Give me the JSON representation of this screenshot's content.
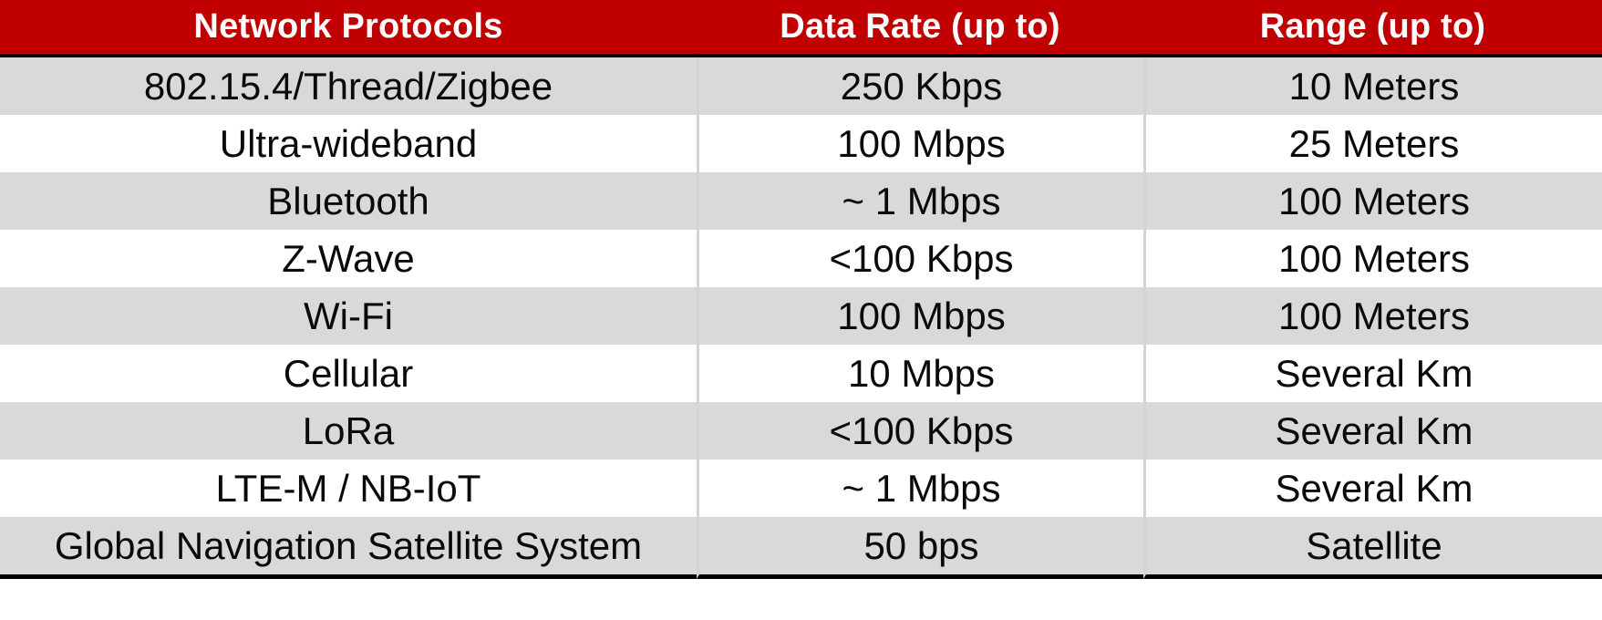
{
  "table": {
    "columns": [
      {
        "label": "Network Protocols"
      },
      {
        "label": "Data Rate (up to)"
      },
      {
        "label": "Range (up to)"
      }
    ],
    "rows": [
      {
        "protocol": "802.15.4/Thread/Zigbee",
        "data_rate": "250 Kbps",
        "range": "10 Meters"
      },
      {
        "protocol": "Ultra-wideband",
        "data_rate": "100 Mbps",
        "range": "25 Meters"
      },
      {
        "protocol": "Bluetooth",
        "data_rate": "~ 1 Mbps",
        "range": "100 Meters"
      },
      {
        "protocol": "Z-Wave",
        "data_rate": "<100 Kbps",
        "range": "100 Meters"
      },
      {
        "protocol": "Wi-Fi",
        "data_rate": "100 Mbps",
        "range": "100 Meters"
      },
      {
        "protocol": "Cellular",
        "data_rate": "10 Mbps",
        "range": "Several Km"
      },
      {
        "protocol": "LoRa",
        "data_rate": "<100 Kbps",
        "range": "Several Km"
      },
      {
        "protocol": "LTE-M / NB-IoT",
        "data_rate": "~ 1 Mbps",
        "range": "Several Km"
      },
      {
        "protocol": "Global Navigation Satellite System",
        "data_rate": "50 bps",
        "range": "Satellite"
      }
    ]
  },
  "colors": {
    "header_bg": "#c00000",
    "header_text": "#ffffff",
    "row_bg": "#ffffff",
    "row_alt_bg": "#d9d9d9",
    "divider": "#d4d4d4",
    "frame_line": "#000000",
    "cell_text": "#0a0a0a"
  },
  "chart_data": {
    "type": "table",
    "title": "",
    "columns": [
      "Network Protocols",
      "Data Rate (up to)",
      "Range (up to)"
    ],
    "rows": [
      [
        "802.15.4/Thread/Zigbee",
        "250 Kbps",
        "10 Meters"
      ],
      [
        "Ultra-wideband",
        "100 Mbps",
        "25 Meters"
      ],
      [
        "Bluetooth",
        "~ 1 Mbps",
        "100 Meters"
      ],
      [
        "Z-Wave",
        "<100 Kbps",
        "100 Meters"
      ],
      [
        "Wi-Fi",
        "100 Mbps",
        "100 Meters"
      ],
      [
        "Cellular",
        "10 Mbps",
        "Several Km"
      ],
      [
        "LoRa",
        "<100 Kbps",
        "Several Km"
      ],
      [
        "LTE-M / NB-IoT",
        "~ 1 Mbps",
        "Several Km"
      ],
      [
        "Global Navigation Satellite System",
        "50 bps",
        "Satellite"
      ]
    ]
  }
}
